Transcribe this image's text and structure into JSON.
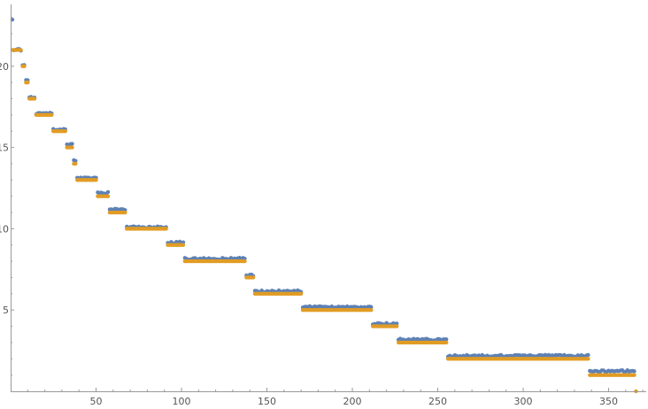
{
  "chart_data": {
    "type": "scatter",
    "title": "",
    "xlabel": "",
    "ylabel": "",
    "xlim": [
      0,
      372
    ],
    "ylim": [
      0,
      23.8
    ],
    "xticks": [
      50,
      100,
      150,
      200,
      250,
      300,
      350
    ],
    "yticks": [
      5,
      10,
      15,
      20
    ],
    "xtick_labels": [
      "50",
      "100",
      "150",
      "200",
      "250",
      "300",
      "350"
    ],
    "ytick_labels": [
      "5",
      "10",
      "15",
      "20"
    ],
    "grid": false,
    "legend": "none",
    "colors": {
      "series_blue": "#5e81b5",
      "series_orange": "#e19c24",
      "axis": "#999999",
      "text": "#555555"
    },
    "series": [
      {
        "color": "series_blue",
        "segments": [
          {
            "x0": 1,
            "x1": 1,
            "y": 22.9
          },
          {
            "x0": 2,
            "x1": 6,
            "y": 21.0
          },
          {
            "x0": 7,
            "x1": 8,
            "y": 20.1
          },
          {
            "x0": 9,
            "x1": 10,
            "y": 19.1
          },
          {
            "x0": 11,
            "x1": 14,
            "y": 18.1
          },
          {
            "x0": 15,
            "x1": 24,
            "y": 17.1
          },
          {
            "x0": 25,
            "x1": 32,
            "y": 16.1
          },
          {
            "x0": 33,
            "x1": 36,
            "y": 15.2
          },
          {
            "x0": 37,
            "x1": 38,
            "y": 14.2
          },
          {
            "x0": 39,
            "x1": 50,
            "y": 13.1
          },
          {
            "x0": 51,
            "x1": 57,
            "y": 12.2
          },
          {
            "x0": 58,
            "x1": 67,
            "y": 11.2
          },
          {
            "x0": 68,
            "x1": 91,
            "y": 10.1
          },
          {
            "x0": 92,
            "x1": 101,
            "y": 9.15
          },
          {
            "x0": 102,
            "x1": 137,
            "y": 8.15
          },
          {
            "x0": 138,
            "x1": 142,
            "y": 7.15
          },
          {
            "x0": 143,
            "x1": 170,
            "y": 6.15
          },
          {
            "x0": 171,
            "x1": 211,
            "y": 5.18
          },
          {
            "x0": 212,
            "x1": 226,
            "y": 4.15
          },
          {
            "x0": 227,
            "x1": 255,
            "y": 3.18
          },
          {
            "x0": 256,
            "x1": 338,
            "y": 2.18
          },
          {
            "x0": 339,
            "x1": 365,
            "y": 1.25
          }
        ]
      },
      {
        "color": "series_orange",
        "segments": [
          {
            "x0": 1,
            "x1": 6,
            "y": 21.0
          },
          {
            "x0": 7,
            "x1": 8,
            "y": 20.0
          },
          {
            "x0": 9,
            "x1": 10,
            "y": 19.0
          },
          {
            "x0": 11,
            "x1": 14,
            "y": 18.0
          },
          {
            "x0": 15,
            "x1": 24,
            "y": 17.0
          },
          {
            "x0": 25,
            "x1": 32,
            "y": 16.0
          },
          {
            "x0": 33,
            "x1": 36,
            "y": 15.0
          },
          {
            "x0": 37,
            "x1": 38,
            "y": 14.0
          },
          {
            "x0": 39,
            "x1": 50,
            "y": 13.0
          },
          {
            "x0": 51,
            "x1": 57,
            "y": 12.0
          },
          {
            "x0": 58,
            "x1": 67,
            "y": 11.0
          },
          {
            "x0": 68,
            "x1": 91,
            "y": 10.0
          },
          {
            "x0": 92,
            "x1": 101,
            "y": 9.0
          },
          {
            "x0": 102,
            "x1": 137,
            "y": 8.0
          },
          {
            "x0": 138,
            "x1": 142,
            "y": 7.0
          },
          {
            "x0": 143,
            "x1": 170,
            "y": 6.0
          },
          {
            "x0": 171,
            "x1": 211,
            "y": 5.0
          },
          {
            "x0": 212,
            "x1": 226,
            "y": 4.0
          },
          {
            "x0": 227,
            "x1": 255,
            "y": 3.0
          },
          {
            "x0": 256,
            "x1": 338,
            "y": 2.0
          },
          {
            "x0": 339,
            "x1": 365,
            "y": 1.0
          },
          {
            "x0": 366,
            "x1": 366,
            "y": 0.0
          }
        ]
      }
    ]
  }
}
